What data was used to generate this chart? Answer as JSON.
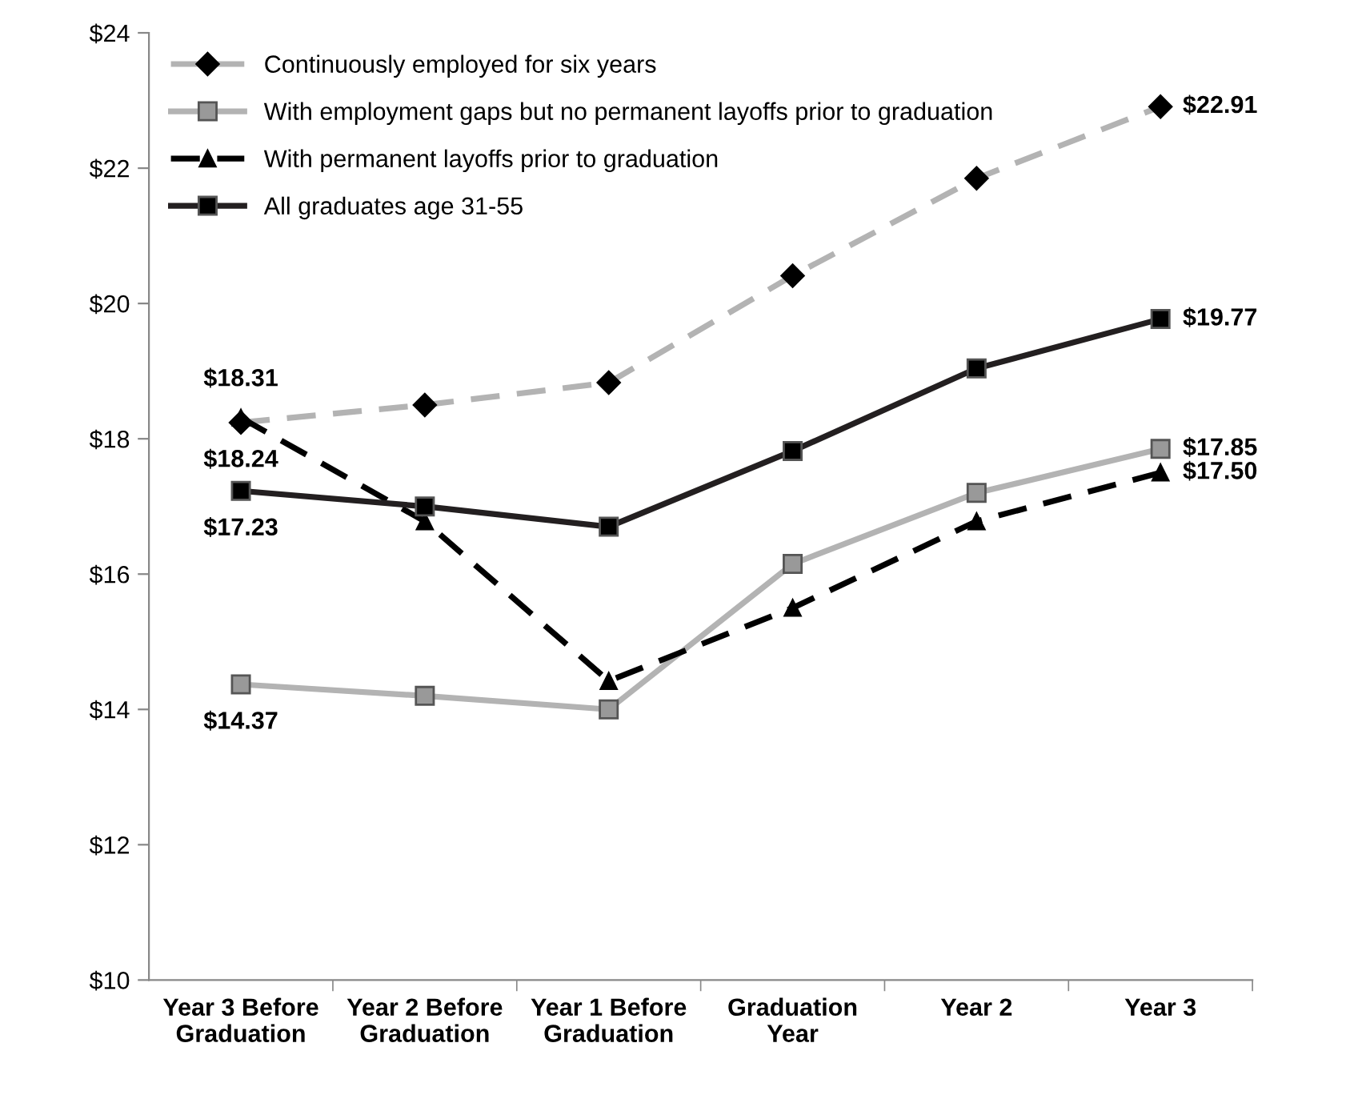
{
  "chart_data": {
    "type": "line",
    "categories": [
      "Year 3 Before\nGraduation",
      "Year 2 Before\nGraduation",
      "Year 1 Before\nGraduation",
      "Graduation\nYear",
      "Year 2",
      "Year 3"
    ],
    "ylim": [
      10,
      24
    ],
    "yticks": [
      {
        "value": 10,
        "label": "$10"
      },
      {
        "value": 12,
        "label": "$12"
      },
      {
        "value": 14,
        "label": "$14"
      },
      {
        "value": 16,
        "label": "$16"
      },
      {
        "value": 18,
        "label": "$18"
      },
      {
        "value": 20,
        "label": "$20"
      },
      {
        "value": 22,
        "label": "$22"
      },
      {
        "value": 24,
        "label": "$24"
      }
    ],
    "grid": false,
    "legend": "top left",
    "series": [
      {
        "name": "Continuously employed for six years",
        "color": "#b3b3b3",
        "marker": "diamond",
        "line_style": "dashed",
        "values": [
          18.24,
          18.5,
          18.83,
          20.41,
          21.85,
          22.91
        ],
        "value_labels": [
          "$18.24",
          null,
          null,
          null,
          null,
          "$22.91"
        ]
      },
      {
        "name": "With employment gaps but no permanent layoffs prior to graduation",
        "color": "#b3b3b3",
        "marker": "square",
        "line_style": "solid",
        "values": [
          14.37,
          14.2,
          14.0,
          16.15,
          17.2,
          17.85
        ],
        "value_labels": [
          "$14.37",
          null,
          null,
          null,
          null,
          "$17.85"
        ]
      },
      {
        "name": "With permanent layoffs prior to graduation",
        "color": "#000000",
        "marker": "triangle",
        "line_style": "dashed",
        "values": [
          18.31,
          16.78,
          14.42,
          15.5,
          16.78,
          17.5
        ],
        "value_labels": [
          "$18.31",
          null,
          null,
          null,
          null,
          "$17.50"
        ]
      },
      {
        "name": "All graduates age 31-55",
        "color": "#231f20",
        "marker": "square",
        "line_style": "solid",
        "values": [
          17.23,
          17.0,
          16.7,
          17.82,
          19.04,
          19.77
        ],
        "value_labels": [
          "$17.23",
          null,
          null,
          null,
          null,
          "$19.77"
        ]
      }
    ]
  }
}
